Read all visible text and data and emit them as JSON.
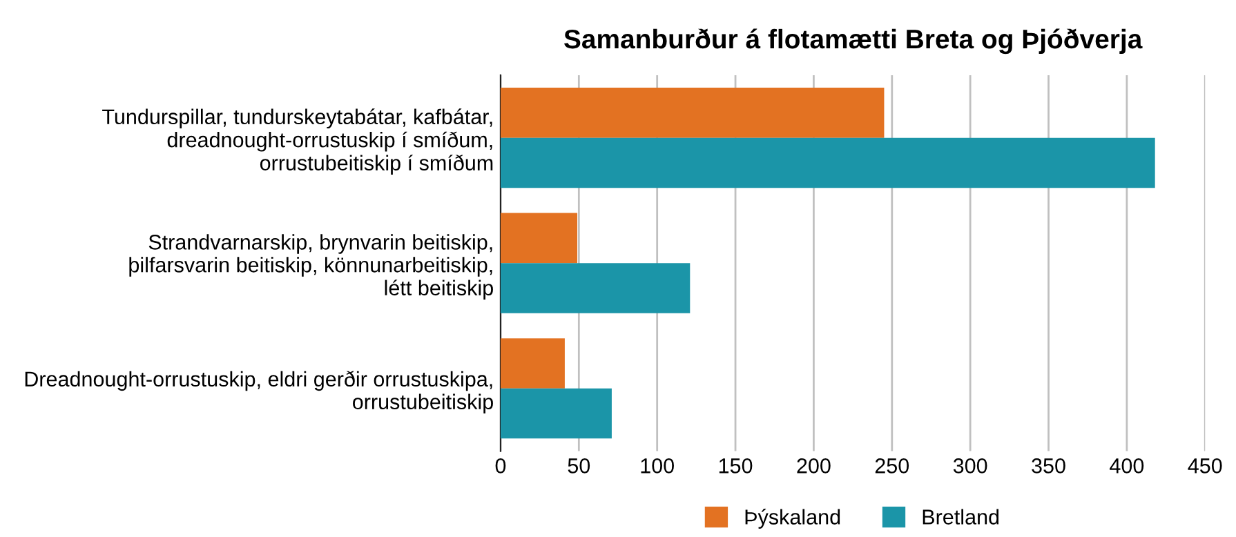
{
  "chart_data": {
    "type": "bar",
    "orientation": "horizontal",
    "title": "Samanburður á flotamætti Breta og Þjóðverja",
    "categories": [
      "Tundurspillar, tundurskeytabátar, kafbátar,\ndreadnought-orrustuskip í smíðum,\norrustubeitiskip í smíðum",
      "Strandvarnarskip, brynvarin beitiskip,\nþilfarsvarin beitiskip, könnunarbeitiskip,\nlétt beitiskip",
      "Dreadnought-orrustuskip, eldri gerðir orrustuskipa,\norrustubeitiskip"
    ],
    "series": [
      {
        "name": "Þýskaland",
        "color": "#e37222",
        "values": [
          245,
          49,
          41
        ]
      },
      {
        "name": "Bretland",
        "color": "#1b95a8",
        "values": [
          418,
          121,
          71
        ]
      }
    ],
    "xlim": [
      0,
      450
    ],
    "xticks": [
      0,
      50,
      100,
      150,
      200,
      250,
      300,
      350,
      400,
      450
    ],
    "grid": "x",
    "legend": "bottom"
  }
}
